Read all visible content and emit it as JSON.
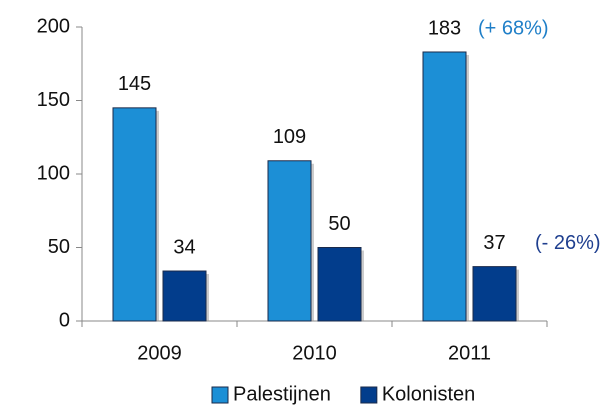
{
  "chart_data": {
    "type": "bar",
    "categories": [
      "2009",
      "2010",
      "2011"
    ],
    "series": [
      {
        "name": "Palestijnen",
        "color": "#1c8fd6",
        "values": [
          145,
          109,
          183
        ]
      },
      {
        "name": "Kolonisten",
        "color": "#023d8c",
        "values": [
          34,
          50,
          37
        ]
      }
    ],
    "annotations": [
      {
        "text": "(+ 68%)",
        "color": "#1f7fc8"
      },
      {
        "text": "(- 26%)",
        "color": "#1f3f8f"
      }
    ],
    "ylim": [
      0,
      200
    ],
    "yticks": [
      0,
      50,
      100,
      150,
      200
    ],
    "grid": false,
    "legend": "bottom"
  }
}
